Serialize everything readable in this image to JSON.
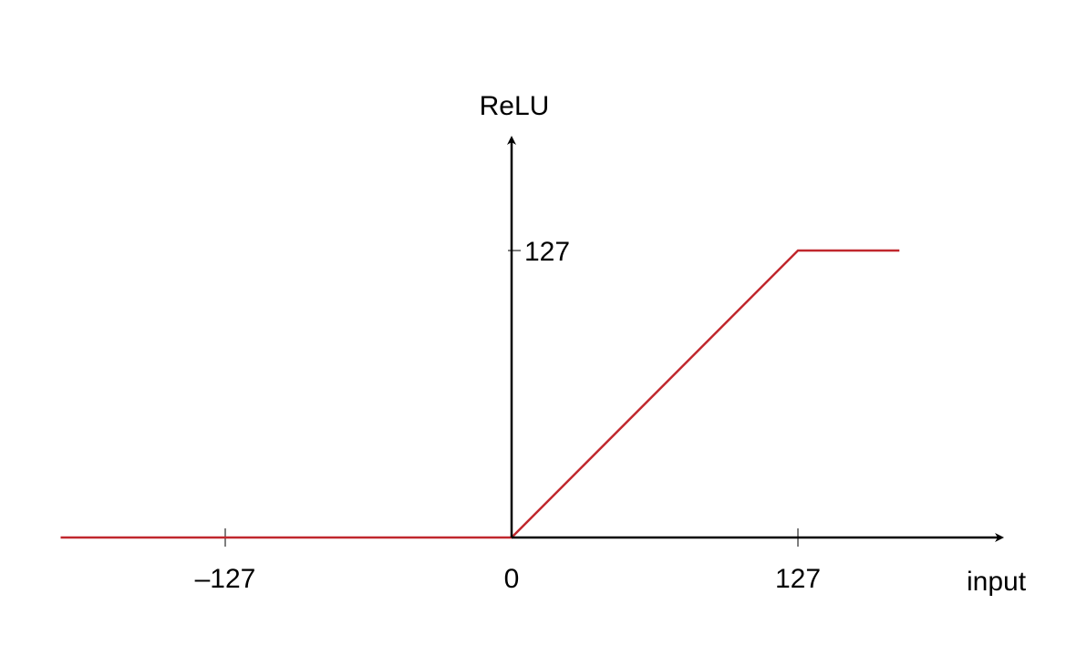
{
  "chart_data": {
    "type": "line",
    "title": "",
    "xlabel": "input",
    "ylabel": "ReLU",
    "xlim": [
      -200,
      172
    ],
    "ylim": [
      0,
      127
    ],
    "x_ticks": [
      -127,
      0,
      127
    ],
    "x_tick_labels": [
      "–127",
      "0",
      "127"
    ],
    "y_ticks": [
      127
    ],
    "y_tick_labels": [
      "127"
    ],
    "grid": false,
    "legend": "none",
    "series": [
      {
        "x": [
          -200,
          0,
          127,
          172
        ],
        "y": [
          0,
          0,
          127,
          127
        ]
      }
    ],
    "colors": {
      "series": "#c0272d",
      "axis": "#000000",
      "tick": "#7f7f7f"
    }
  }
}
